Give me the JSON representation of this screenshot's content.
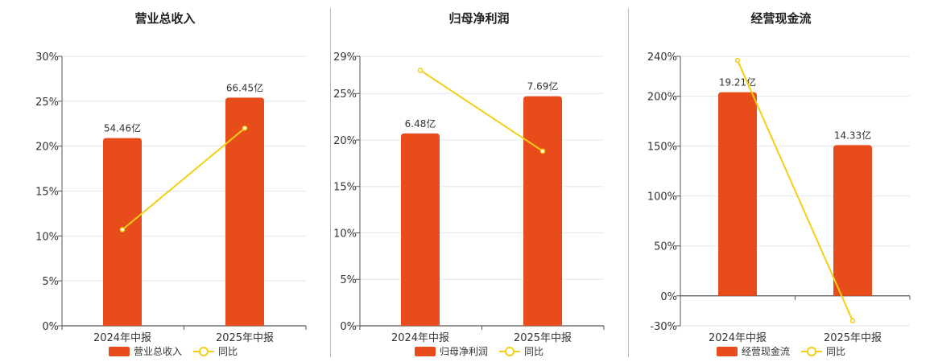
{
  "colors": {
    "bar": "#e84c1b",
    "line": "#f2cf12",
    "grid": "#e3e5ee",
    "axis": "#555555"
  },
  "chart_data": [
    {
      "type": "bar",
      "title": "营业总收入",
      "categories": [
        "2024年中报",
        "2025年中报"
      ],
      "series": [
        {
          "name": "营业总收入",
          "type": "bar",
          "values": [
            20.9,
            25.4
          ],
          "labels": [
            "54.46亿",
            "66.45亿"
          ]
        },
        {
          "name": "同比",
          "type": "line",
          "values": [
            10.7,
            22.0
          ]
        }
      ],
      "yticks": [
        "0%",
        "5%",
        "10%",
        "15%",
        "20%",
        "25%",
        "30%"
      ],
      "ylim": [
        0,
        30
      ],
      "grid": true,
      "legend": "bottom"
    },
    {
      "type": "bar",
      "title": "归母净利润",
      "categories": [
        "2024年中报",
        "2025年中报"
      ],
      "series": [
        {
          "name": "归母净利润",
          "type": "bar",
          "values": [
            20.7,
            24.7
          ],
          "labels": [
            "6.48亿",
            "7.69亿"
          ]
        },
        {
          "name": "同比",
          "type": "line",
          "values": [
            27.5,
            18.8
          ]
        }
      ],
      "yticks": [
        "0%",
        "5%",
        "10%",
        "15%",
        "20%",
        "25%",
        "29%"
      ],
      "ylim": [
        0,
        29
      ],
      "grid": true,
      "legend": "bottom"
    },
    {
      "type": "bar",
      "title": "经营现金流",
      "categories": [
        "2024年中报",
        "2025年中报"
      ],
      "series": [
        {
          "name": "经营现金流",
          "type": "bar",
          "values": [
            204,
            151
          ],
          "labels": [
            "19.21亿",
            "14.33亿"
          ]
        },
        {
          "name": "同比",
          "type": "line",
          "values": [
            236,
            -25
          ]
        }
      ],
      "yticks": [
        "-30%",
        "0%",
        "50%",
        "100%",
        "150%",
        "200%",
        "240%"
      ],
      "ylim": [
        -30,
        240
      ],
      "grid": true,
      "legend": "bottom"
    }
  ]
}
